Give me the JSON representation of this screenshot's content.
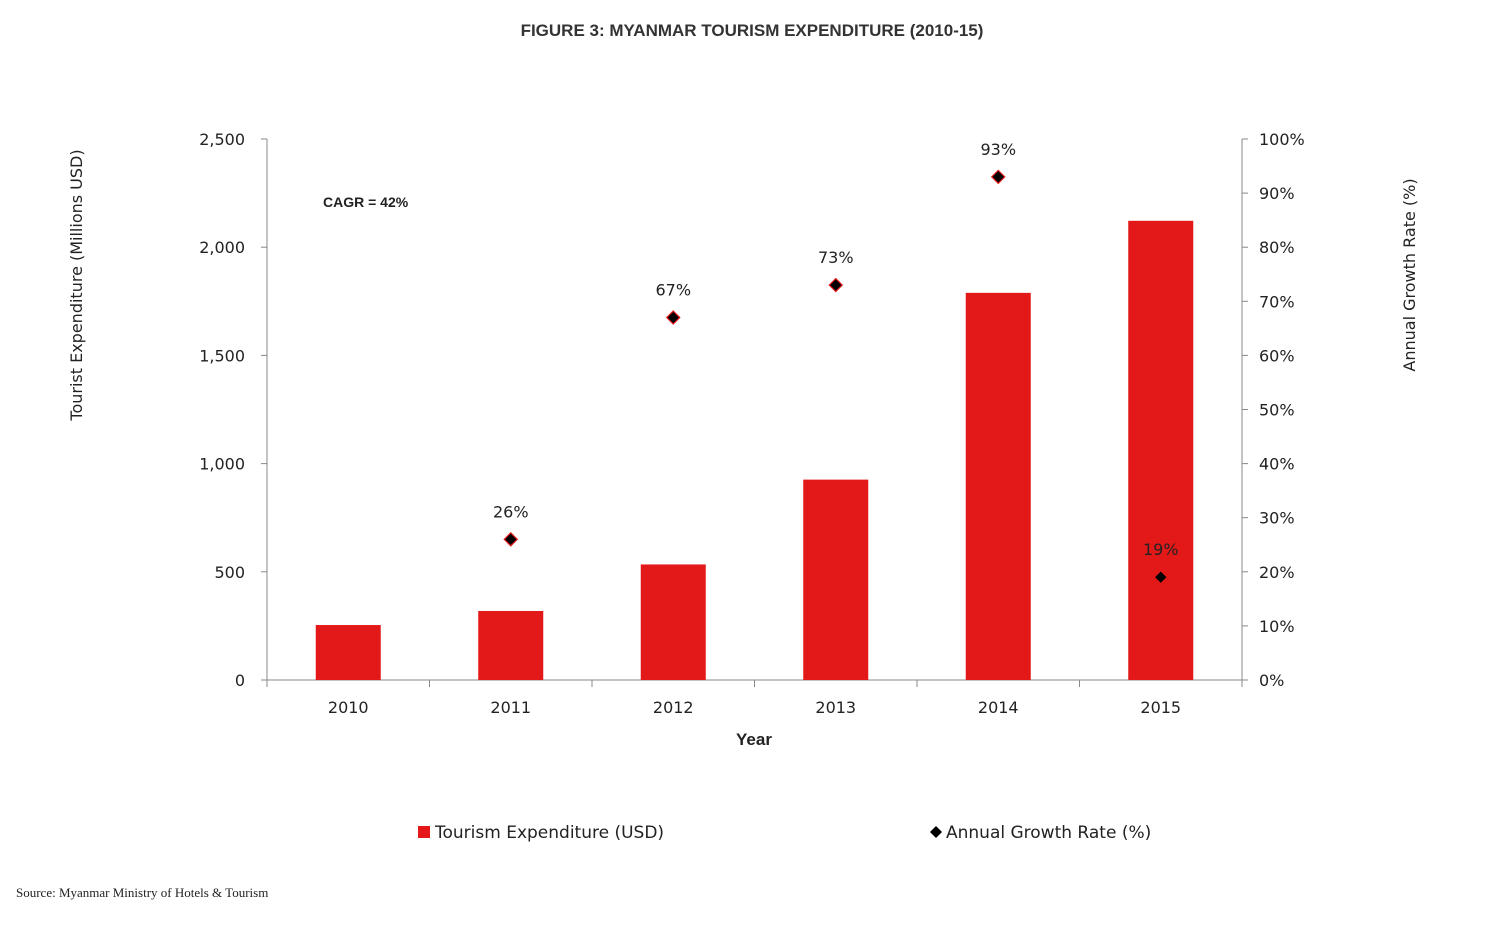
{
  "chart_data": {
    "type": "bar",
    "title": "FIGURE 3: MYANMAR TOURISM EXPENDITURE (2010-15)",
    "xlabel": "Year",
    "ylabel": "Tourist Expenditure (Millions  USD)",
    "y2label": "Annual Growth Rate (%)",
    "categories": [
      "2010",
      "2011",
      "2012",
      "2013",
      "2014",
      "2015"
    ],
    "ylim": [
      0,
      2500
    ],
    "y2lim": [
      0,
      100
    ],
    "yticks": [
      "0",
      "500",
      "1,000",
      "1,500",
      "2,000",
      "2,500"
    ],
    "y2ticks": [
      "0%",
      "10%",
      "20%",
      "30%",
      "40%",
      "50%",
      "60%",
      "70%",
      "80%",
      "90%",
      "100%"
    ],
    "series": [
      {
        "name": "Tourism Expenditure (USD)",
        "type": "bar",
        "axis": "left",
        "color": "#E31919",
        "values": [
          254,
          319,
          534,
          926,
          1789,
          2122
        ]
      },
      {
        "name": "Annual Growth Rate (%)",
        "type": "scatter",
        "axis": "right",
        "marker": "diamond",
        "color": "#000000",
        "edge_color": "#E31919",
        "values": [
          null,
          26,
          67,
          73,
          93,
          19
        ],
        "labels": [
          "",
          "26%",
          "67%",
          "73%",
          "93%",
          "19%"
        ]
      }
    ],
    "annotations": [
      "CAGR = 42%"
    ],
    "legend_position": "bottom",
    "grid": false
  },
  "source": "Source: Myanmar Ministry of Hotels & Tourism"
}
